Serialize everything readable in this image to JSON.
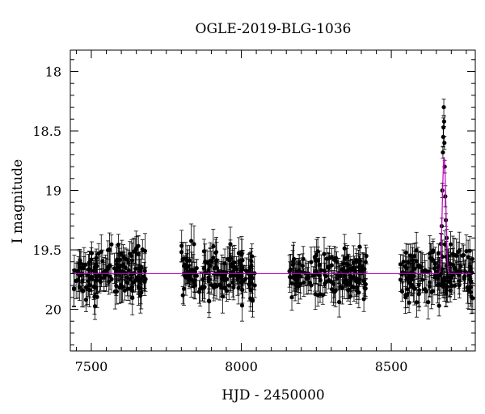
{
  "chart_data": {
    "type": "scatter",
    "title": "OGLE-2019-BLG-1036",
    "xlabel": "HJD - 2450000",
    "ylabel": "I magnitude",
    "xlim": [
      7430,
      8780
    ],
    "ylim": [
      20.35,
      17.82
    ],
    "y_inverted": true,
    "x_ticks": [
      7500,
      8000,
      8500
    ],
    "x_tick_labels": [
      "7500",
      "8000",
      "8500"
    ],
    "y_ticks": [
      18,
      18.5,
      19,
      19.5,
      20
    ],
    "y_tick_labels": [
      "18",
      "18.5",
      "19",
      "19.5",
      "20"
    ],
    "grid": false,
    "colors": {
      "data_points": "#000000",
      "model_curve": "#c000c0",
      "frame": "#000000"
    },
    "series": [
      {
        "marker": "filled-circle-with-error-bars",
        "seasons": [
          {
            "x_range": [
              7440,
              7685
            ],
            "baseline_mag": 19.7,
            "scatter": 0.2,
            "error": 0.12
          },
          {
            "x_range": [
              7800,
              8045
            ],
            "baseline_mag": 19.7,
            "scatter": 0.2,
            "error": 0.12
          },
          {
            "x_range": [
              8160,
              8420
            ],
            "baseline_mag": 19.7,
            "scatter": 0.18,
            "error": 0.11
          },
          {
            "x_range": [
              8530,
              8775
            ],
            "baseline_mag": 19.7,
            "scatter": 0.2,
            "error": 0.12
          }
        ],
        "peak_points": [
          [
            8665,
            19.45
          ],
          [
            8668,
            19.3
          ],
          [
            8670,
            19.0
          ],
          [
            8672,
            18.68
          ],
          [
            8673,
            18.55
          ],
          [
            8674,
            18.47
          ],
          [
            8675,
            18.3
          ],
          [
            8676,
            18.42
          ],
          [
            8677,
            18.6
          ],
          [
            8678,
            18.8
          ],
          [
            8680,
            19.05
          ],
          [
            8682,
            19.25
          ],
          [
            8685,
            19.4
          ],
          [
            8690,
            19.55
          ]
        ]
      },
      {
        "type": "line",
        "baseline_mag": 19.7,
        "peak_mag": 18.72,
        "t0": 8676,
        "tE": 7
      }
    ]
  }
}
